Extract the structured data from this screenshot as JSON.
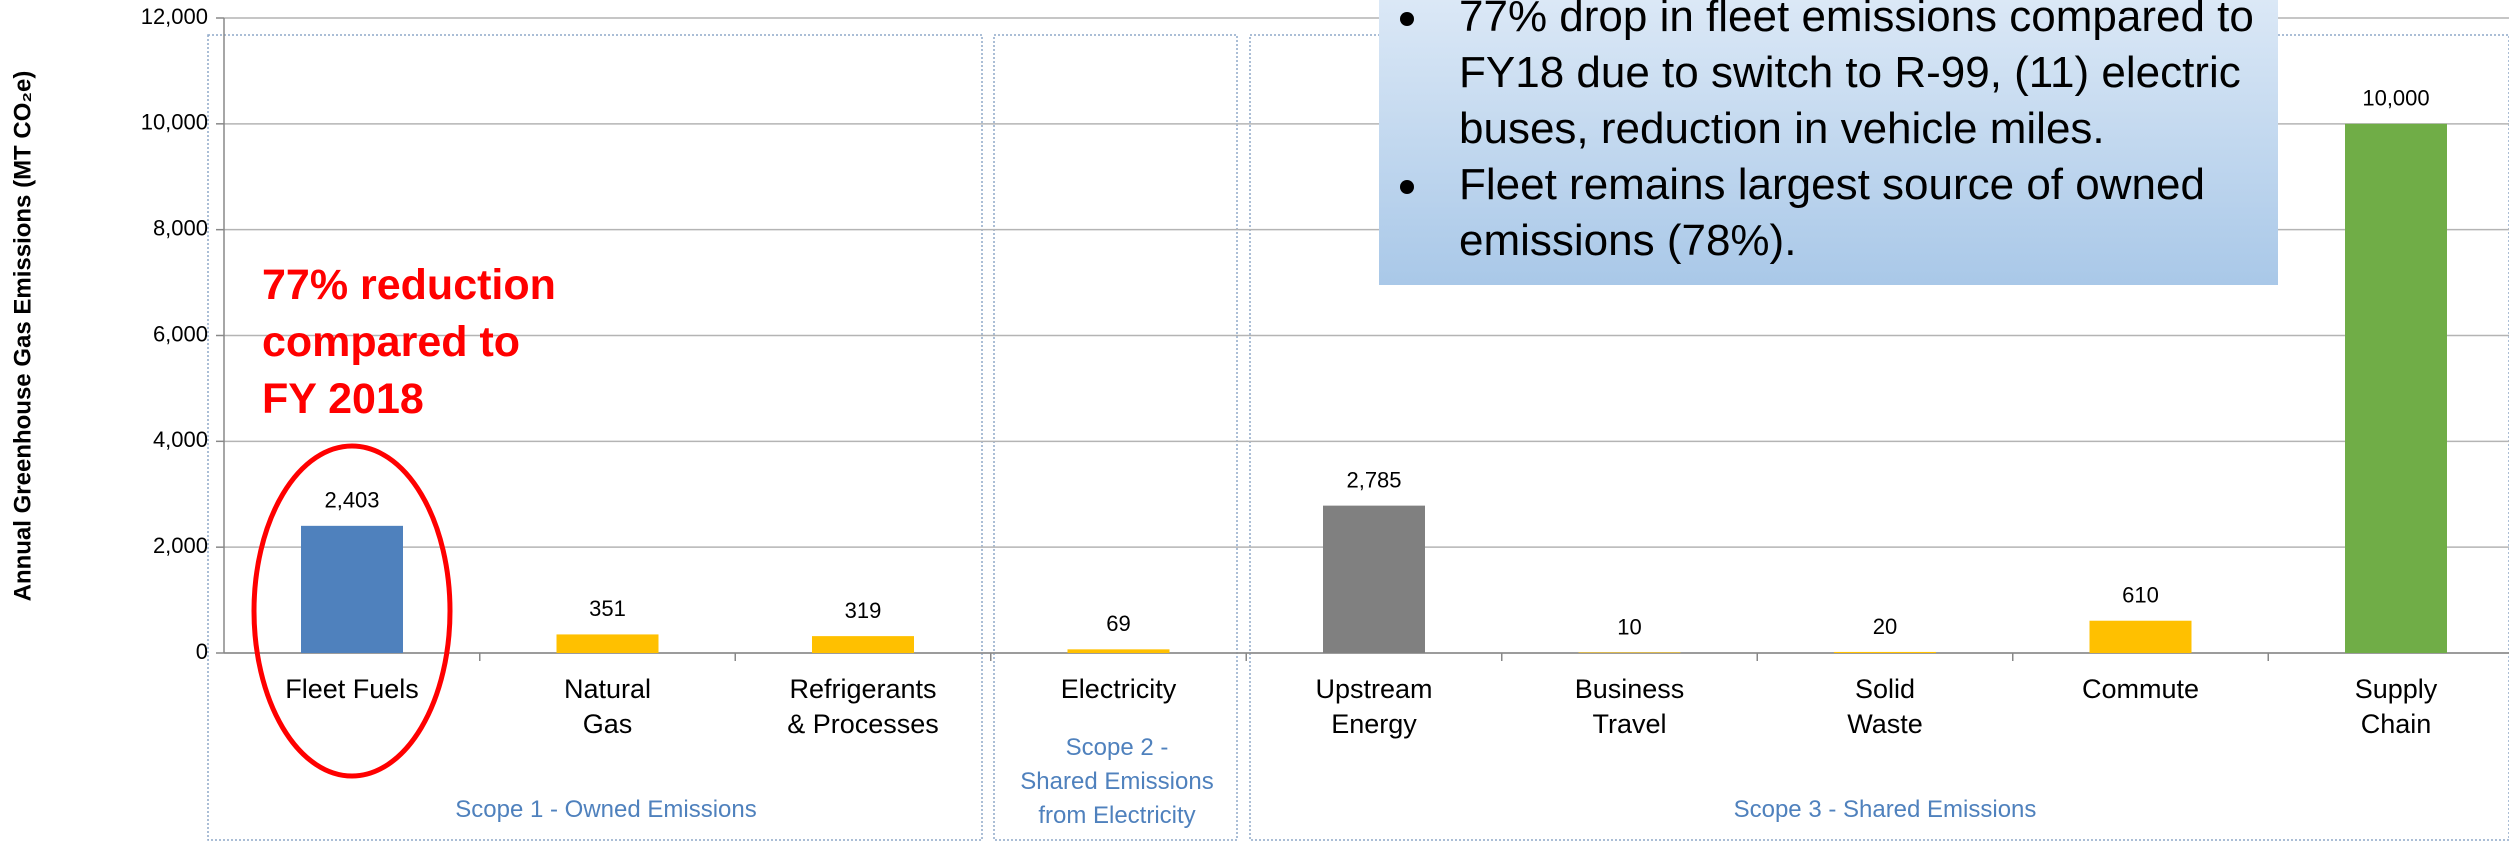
{
  "chart_data": {
    "type": "bar",
    "y_label": "Annual Greenhouse Gas Emissions (MT CO₂e)",
    "categories": [
      "Fleet Fuels",
      "Natural\nGas",
      "Refrigerants\n& Processes",
      "Electricity",
      "Upstream\nEnergy",
      "Business\nTravel",
      "Solid\nWaste",
      "Commute",
      "Supply\nChain"
    ],
    "values": [
      2403,
      351,
      319,
      69,
      2785,
      10,
      20,
      610,
      10000
    ],
    "value_labels": [
      "2,403",
      "351",
      "319",
      "69",
      "2,785",
      "10",
      "20",
      "610",
      "10,000"
    ],
    "colors": [
      "#4f81bd",
      "#ffc000",
      "#ffc000",
      "#ffc000",
      "#808080",
      "#ffc000",
      "#ffc000",
      "#ffc000",
      "#70ad47"
    ],
    "ylim": [
      0,
      12000
    ],
    "yticks": [
      0,
      {
        "value": 2000,
        "label": "2,000"
      },
      {
        "value": 4000,
        "label": "4,000"
      },
      {
        "value": 6000,
        "label": "6,000"
      },
      {
        "value": 8000,
        "label": "8,000"
      },
      {
        "value": 10000,
        "label": "10,000"
      },
      {
        "value": 12000,
        "label": "12,000"
      }
    ],
    "grid": true,
    "groups": [
      {
        "label": [
          "Scope 1 - Owned Emissions"
        ]
      },
      {
        "label": [
          "Scope 2 -",
          "Shared Emissions",
          "from Electricity"
        ]
      },
      {
        "label": [
          "Scope 3 - Shared Emissions"
        ]
      }
    ],
    "annotation": [
      "77% reduction",
      "compared to",
      "FY 2018"
    ],
    "callout": [
      [
        "77% drop in fleet emissions compared to",
        "FY18 due to switch to R-99, (11) electric",
        "buses, reduction in vehicle miles."
      ],
      [
        "Fleet remains largest source of owned",
        "emissions (78%)."
      ]
    ]
  }
}
